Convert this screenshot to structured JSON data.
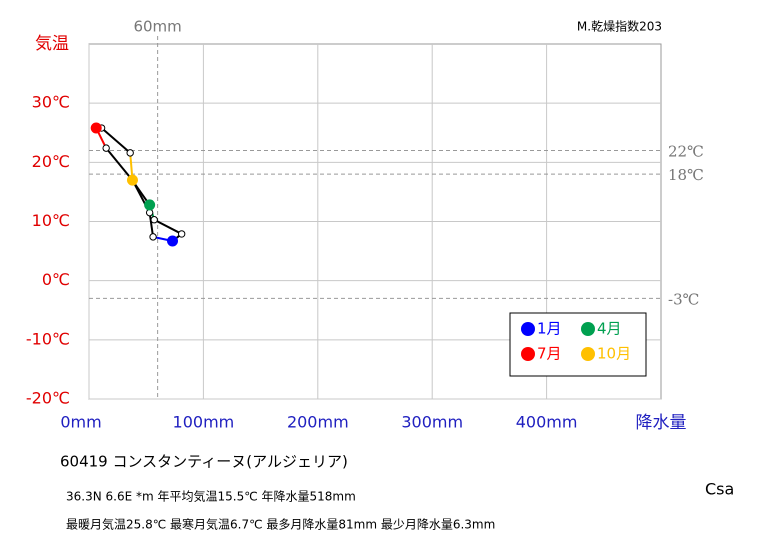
{
  "chart_data": {
    "type": "climograph",
    "y_label": "気温",
    "x_label": "降水量",
    "corner_note": "M.乾燥指数203",
    "x": [
      73,
      81,
      57,
      53,
      37,
      15,
      6.3,
      11,
      36,
      38,
      53,
      56
    ],
    "y": [
      6.7,
      7.9,
      10.3,
      12.8,
      17.2,
      22.4,
      25.8,
      25.8,
      21.6,
      17.0,
      11.5,
      7.4
    ],
    "line_color": "#000000",
    "highlights": [
      {
        "name": "1月",
        "index": 0,
        "color": "#0000ff"
      },
      {
        "name": "4月",
        "index": 3,
        "color": "#00a050"
      },
      {
        "name": "7月",
        "index": 6,
        "color": "#ff0000"
      },
      {
        "name": "10月",
        "index": 9,
        "color": "#ffc000"
      }
    ],
    "xlim": [
      0,
      500
    ],
    "ylim": [
      -20,
      40
    ],
    "xticks": [
      {
        "value": 0,
        "label": "0mm"
      },
      {
        "value": 100,
        "label": "100mm"
      },
      {
        "value": 200,
        "label": "200mm"
      },
      {
        "value": 300,
        "label": "300mm"
      },
      {
        "value": 400,
        "label": "400mm"
      }
    ],
    "yticks": [
      {
        "value": -20,
        "label": "-20℃"
      },
      {
        "value": -10,
        "label": "-10℃"
      },
      {
        "value": 0,
        "label": "0℃"
      },
      {
        "value": 10,
        "label": "10℃"
      },
      {
        "value": 20,
        "label": "20℃"
      },
      {
        "value": 30,
        "label": "30℃"
      }
    ],
    "grid": true,
    "ref_y": [
      {
        "value": 22,
        "label": "22℃"
      },
      {
        "value": 18,
        "label": "18℃"
      },
      {
        "value": -3,
        "label": "-3℃"
      }
    ],
    "ref_x": [
      {
        "value": 60,
        "label": "60mm"
      }
    ],
    "station": "60419  コンスタンティーヌ(アルジェリア)",
    "info_lines": [
      "36.3N  6.6E *m  年平均気温15.5℃ 年降水量518mm",
      "最暖月気温25.8℃ 最寒月気温6.7℃ 最多月降水量81mm 最少月降水量6.3mm"
    ],
    "climate_class": "Csa"
  }
}
